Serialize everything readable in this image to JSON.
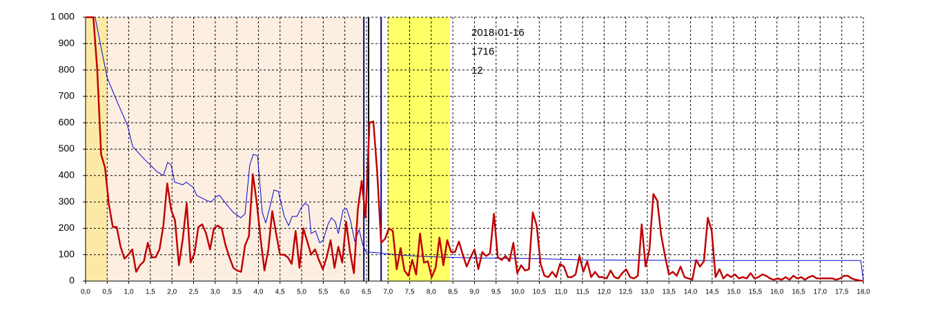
{
  "chart_data": {
    "type": "line",
    "xlim": [
      0,
      18
    ],
    "ylim": [
      0,
      1000
    ],
    "grid": true,
    "yticks": [
      0,
      100,
      200,
      300,
      400,
      500,
      600,
      700,
      800,
      900,
      {
        "value": 1000,
        "label": "1 000"
      }
    ],
    "xticks": [
      {
        "value": 0,
        "label": "0,0"
      },
      {
        "value": 0.5,
        "label": "0,5"
      },
      {
        "value": 1,
        "label": "1,0"
      },
      {
        "value": 1.5,
        "label": "1,5"
      },
      {
        "value": 2,
        "label": "2,0"
      },
      {
        "value": 2.5,
        "label": "2,5"
      },
      {
        "value": 3,
        "label": "3,0"
      },
      {
        "value": 3.5,
        "label": "3,5"
      },
      {
        "value": 4,
        "label": "4,0"
      },
      {
        "value": 4.5,
        "label": "4,5"
      },
      {
        "value": 5,
        "label": "5,0"
      },
      {
        "value": 5.5,
        "label": "5,5"
      },
      {
        "value": 6,
        "label": "6,0"
      },
      {
        "value": 6.5,
        "label": "6,5"
      },
      {
        "value": 7,
        "label": "7,0"
      },
      {
        "value": 7.5,
        "label": "7,5"
      },
      {
        "value": 8,
        "label": "8,0"
      },
      {
        "value": 8.5,
        "label": "8,5"
      },
      {
        "value": 9,
        "label": "9,0"
      },
      {
        "value": 9.5,
        "label": "9,5"
      },
      {
        "value": 10,
        "label": "10,0"
      },
      {
        "value": 10.5,
        "label": "10,5"
      },
      {
        "value": 11,
        "label": "11,0"
      },
      {
        "value": 11.5,
        "label": "11,5"
      },
      {
        "value": 12,
        "label": "12,0"
      },
      {
        "value": 12.5,
        "label": "12,5"
      },
      {
        "value": 13,
        "label": "13,0"
      },
      {
        "value": 13.5,
        "label": "13,5"
      },
      {
        "value": 14,
        "label": "14,0"
      },
      {
        "value": 14.5,
        "label": "14,5"
      },
      {
        "value": 15,
        "label": "15,0"
      },
      {
        "value": 15.5,
        "label": "15,5"
      },
      {
        "value": 16,
        "label": "16,0"
      },
      {
        "value": 16.5,
        "label": "16,5"
      },
      {
        "value": 17,
        "label": "17,0"
      },
      {
        "value": 17.5,
        "label": "17,5"
      },
      {
        "value": 18,
        "label": "18,0"
      }
    ],
    "spans": [
      {
        "from": 0,
        "to": 0.5,
        "color": "#fde9a6"
      },
      {
        "from": 0.5,
        "to": 6.44,
        "color": "#fdeee2"
      },
      {
        "from": 7.0,
        "to": 8.42,
        "color": "#ffff66"
      }
    ],
    "vlines": [
      {
        "x": 6.44,
        "color": "#000080"
      },
      {
        "x": 6.55,
        "color": "#000000"
      },
      {
        "x": 6.84,
        "color": "#000080"
      }
    ],
    "annotations": [
      "2018-01-16",
      "1716",
      "12"
    ],
    "series": [
      {
        "color": "#0000cc",
        "width": 1,
        "x": [
          0.22,
          0.5,
          0.73,
          0.97,
          1.09,
          1.37,
          1.5,
          1.65,
          1.8,
          1.9,
          1.98,
          2.06,
          2.25,
          2.33,
          2.49,
          2.57,
          2.81,
          2.91,
          3.02,
          3.1,
          3.29,
          3.42,
          3.59,
          3.69,
          3.8,
          3.88,
          3.98,
          4.09,
          4.17,
          4.28,
          4.36,
          4.46,
          4.6,
          4.7,
          4.78,
          4.89,
          5.0,
          5.08,
          5.16,
          5.22,
          5.32,
          5.42,
          5.5,
          5.61,
          5.69,
          5.78,
          5.85,
          5.96,
          6.04,
          6.13,
          6.23,
          6.33,
          6.41,
          6.49,
          6.73,
          6.96,
          7.6,
          8.4,
          9.2,
          10.48,
          11.6,
          14.0,
          17.94,
          18.0
        ],
        "values": [
          1000,
          770,
          680,
          590,
          510,
          460,
          440,
          415,
          400,
          450,
          440,
          375,
          365,
          375,
          355,
          325,
          305,
          300,
          320,
          325,
          285,
          260,
          240,
          255,
          440,
          480,
          475,
          260,
          220,
          290,
          345,
          340,
          245,
          210,
          245,
          245,
          280,
          295,
          285,
          180,
          190,
          145,
          155,
          215,
          240,
          225,
          180,
          270,
          275,
          230,
          150,
          195,
          140,
          110,
          108,
          103,
          95,
          90,
          87,
          85,
          80,
          78,
          78,
          0
        ]
      },
      {
        "color": "#c00000",
        "width": 2.5,
        "x": [
          0,
          0.09,
          0.18,
          0.27,
          0.36,
          0.45,
          0.54,
          0.63,
          0.72,
          0.81,
          0.9,
          0.99,
          1.08,
          1.17,
          1.26,
          1.35,
          1.44,
          1.53,
          1.62,
          1.71,
          1.8,
          1.89,
          1.98,
          2.07,
          2.16,
          2.25,
          2.34,
          2.43,
          2.52,
          2.61,
          2.7,
          2.79,
          2.88,
          2.97,
          3.06,
          3.15,
          3.24,
          3.33,
          3.42,
          3.51,
          3.6,
          3.69,
          3.78,
          3.87,
          3.96,
          4.05,
          4.14,
          4.23,
          4.32,
          4.41,
          4.5,
          4.59,
          4.68,
          4.77,
          4.86,
          4.95,
          5.04,
          5.13,
          5.22,
          5.31,
          5.4,
          5.49,
          5.58,
          5.67,
          5.76,
          5.85,
          5.94,
          6.03,
          6.12,
          6.21,
          6.3,
          6.39,
          6.48,
          6.57,
          6.66,
          6.75,
          6.84,
          6.93,
          7.02,
          7.11,
          7.2,
          7.29,
          7.38,
          7.47,
          7.56,
          7.65,
          7.74,
          7.83,
          7.92,
          8.01,
          8.1,
          8.19,
          8.28,
          8.37,
          8.46,
          8.55,
          8.64,
          8.73,
          8.82,
          8.91,
          9.0,
          9.09,
          9.18,
          9.27,
          9.36,
          9.45,
          9.54,
          9.63,
          9.72,
          9.81,
          9.9,
          9.99,
          10.08,
          10.17,
          10.26,
          10.35,
          10.44,
          10.53,
          10.62,
          10.71,
          10.8,
          10.89,
          10.98,
          11.07,
          11.16,
          11.25,
          11.34,
          11.43,
          11.52,
          11.61,
          11.7,
          11.79,
          11.88,
          11.97,
          12.06,
          12.15,
          12.24,
          12.33,
          12.42,
          12.51,
          12.6,
          12.69,
          12.78,
          12.87,
          12.96,
          13.05,
          13.14,
          13.23,
          13.32,
          13.41,
          13.5,
          13.59,
          13.68,
          13.77,
          13.86,
          13.95,
          14.04,
          14.13,
          14.22,
          14.31,
          14.4,
          14.49,
          14.58,
          14.67,
          14.76,
          14.85,
          14.94,
          15.03,
          15.12,
          15.21,
          15.3,
          15.39,
          15.48,
          15.57,
          15.66,
          15.75,
          15.84,
          15.93,
          16.02,
          16.11,
          16.2,
          16.29,
          16.38,
          16.47,
          16.56,
          16.65,
          16.74,
          16.83,
          16.92,
          17.01,
          17.1,
          17.19,
          17.28,
          17.37,
          17.46,
          17.55,
          17.64,
          17.73,
          17.82,
          18.0
        ],
        "values": [
          1000,
          1000,
          1000,
          800,
          480,
          430,
          290,
          205,
          205,
          130,
          85,
          100,
          120,
          35,
          60,
          75,
          145,
          90,
          90,
          120,
          210,
          370,
          270,
          230,
          60,
          160,
          295,
          70,
          105,
          205,
          215,
          180,
          120,
          200,
          210,
          200,
          135,
          90,
          50,
          40,
          35,
          135,
          170,
          405,
          300,
          160,
          40,
          120,
          265,
          180,
          100,
          100,
          90,
          65,
          190,
          50,
          200,
          150,
          100,
          120,
          80,
          45,
          90,
          155,
          50,
          130,
          70,
          225,
          110,
          30,
          270,
          380,
          240,
          600,
          605,
          410,
          145,
          160,
          200,
          190,
          45,
          125,
          40,
          20,
          80,
          25,
          180,
          70,
          75,
          15,
          50,
          165,
          60,
          155,
          110,
          110,
          150,
          100,
          55,
          90,
          120,
          45,
          110,
          95,
          105,
          255,
          90,
          80,
          95,
          75,
          145,
          30,
          60,
          40,
          45,
          260,
          210,
          65,
          20,
          15,
          35,
          15,
          65,
          55,
          15,
          15,
          25,
          95,
          35,
          75,
          15,
          35,
          15,
          15,
          10,
          40,
          15,
          10,
          30,
          45,
          15,
          10,
          20,
          215,
          55,
          120,
          330,
          305,
          175,
          95,
          25,
          35,
          20,
          55,
          15,
          10,
          5,
          80,
          55,
          75,
          240,
          190,
          15,
          45,
          10,
          25,
          15,
          25,
          10,
          15,
          10,
          30,
          10,
          15,
          25,
          20,
          10,
          5,
          10,
          5,
          15,
          5,
          20,
          10,
          15,
          5,
          15,
          20,
          10,
          10,
          10,
          10,
          10,
          5,
          10,
          20,
          20,
          10,
          5,
          0
        ]
      }
    ]
  }
}
